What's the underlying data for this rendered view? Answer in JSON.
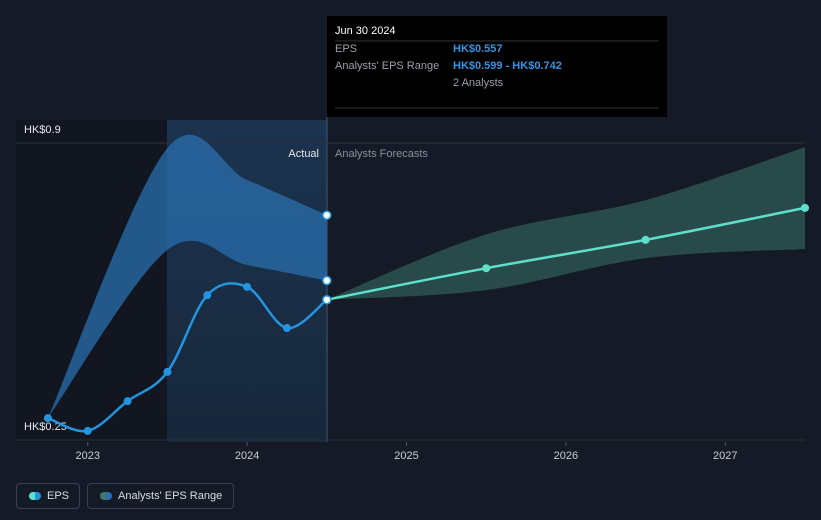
{
  "chart_data": {
    "type": "line",
    "xlim": [
      2022.55,
      2027.5
    ],
    "xticks": [
      2023,
      2024,
      2025,
      2026,
      2027
    ],
    "ylim": [
      0.25,
      0.9
    ],
    "yticks": [
      {
        "value": 0.9,
        "label": "HK$0.9"
      },
      {
        "value": 0.25,
        "label": "HK$0.25"
      }
    ],
    "annotations": {
      "actual": "Actual",
      "forecast": "Analysts Forecasts"
    },
    "series": [
      {
        "name": "EPS",
        "color": "#2394df",
        "x": [
          2022.75,
          2023.0,
          2023.25,
          2023.5,
          2023.75,
          2024.0,
          2024.25,
          2024.5
        ],
        "values": [
          0.298,
          0.27,
          0.335,
          0.399,
          0.567,
          0.585,
          0.495,
          0.557
        ],
        "forecast": {
          "color": "#5ee0c8",
          "x": [
            2024.5,
            2025.5,
            2026.5,
            2027.5
          ],
          "values": [
            0.557,
            0.626,
            0.688,
            0.758
          ]
        }
      },
      {
        "name": "Analysts' EPS Range",
        "color": "#2a6fae",
        "x": [
          2022.75,
          2023.5,
          2024.0,
          2024.5
        ],
        "low": [
          0.298,
          0.666,
          0.633,
          0.599
        ],
        "high": [
          0.298,
          0.889,
          0.819,
          0.742
        ],
        "forecast": {
          "color": "#3d7a6e",
          "x": [
            2024.5,
            2025.5,
            2026.5,
            2027.5
          ],
          "low": [
            0.557,
            0.578,
            0.648,
            0.668
          ],
          "high": [
            0.557,
            0.7,
            0.775,
            0.891
          ]
        }
      }
    ],
    "tooltip": {
      "date": "Jun 30 2024",
      "rows": [
        {
          "label": "EPS",
          "value": "HK$0.557"
        },
        {
          "label": "Analysts' EPS Range",
          "value": "HK$0.599 - HK$0.742"
        }
      ],
      "analysts": "2 Analysts"
    }
  }
}
